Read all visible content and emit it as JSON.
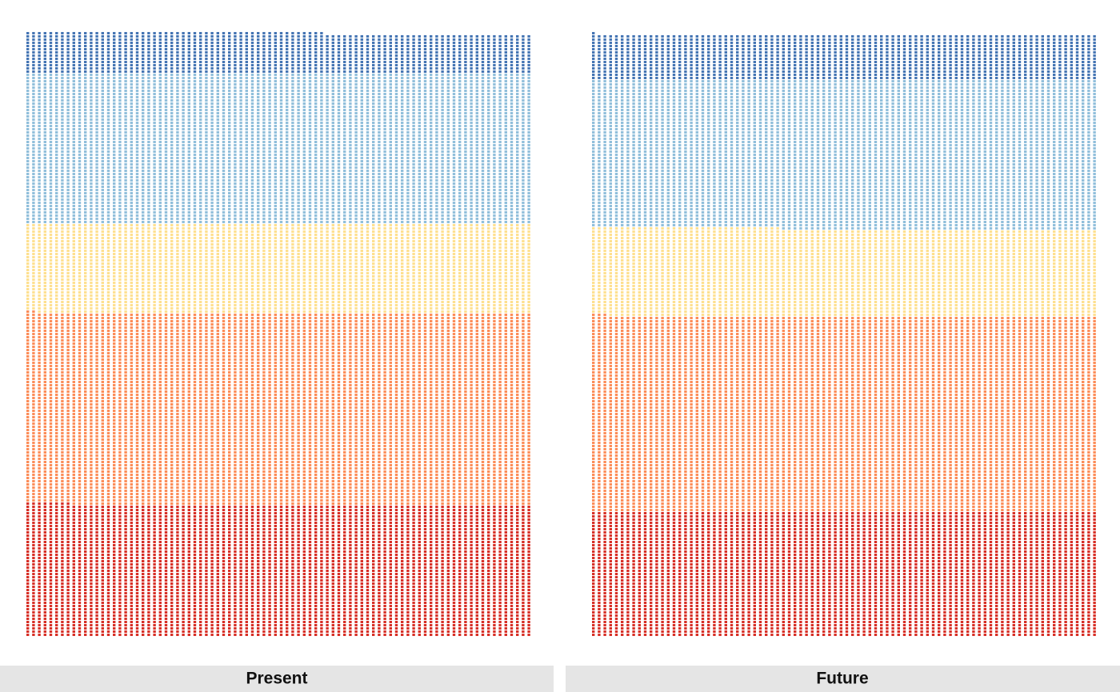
{
  "chart_data": {
    "type": "waffle",
    "categories": [
      "Present",
      "Future"
    ],
    "series": [
      {
        "color": "#d73027",
        "values": [
          3616,
          3432
        ]
      },
      {
        "color": "#fc8d59",
        "values": [
          5274,
          5371
        ]
      },
      {
        "color": "#fee090",
        "values": [
          2462,
          2406
        ]
      },
      {
        "color": "#91bfdb",
        "values": [
          4136,
          4103
        ]
      },
      {
        "color": "#4575b4",
        "values": [
          1108,
          1233
        ]
      }
    ]
  }
}
